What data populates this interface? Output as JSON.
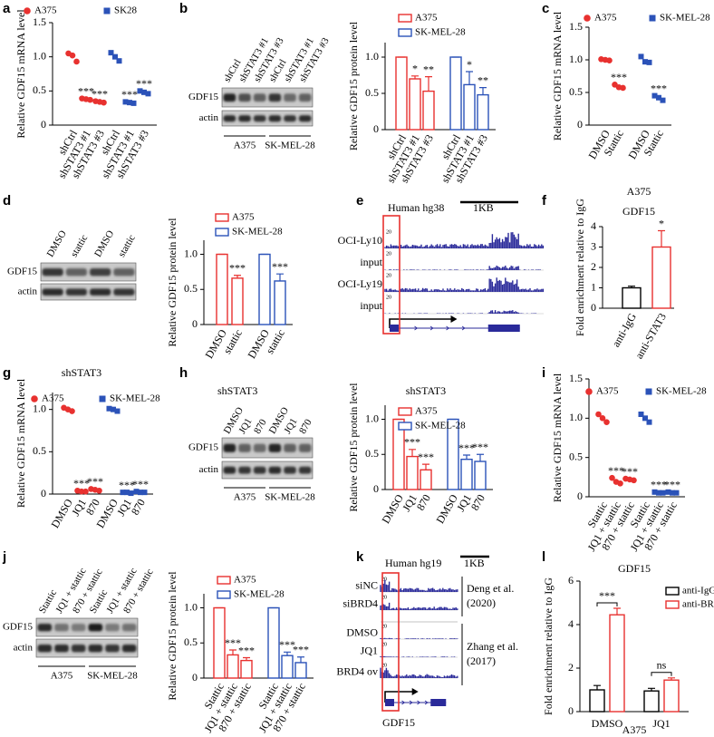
{
  "panel_letters": [
    "a",
    "b",
    "c",
    "d",
    "e",
    "f",
    "g",
    "h",
    "i",
    "j",
    "k",
    "l"
  ],
  "chart_data": [
    {
      "type": "scatter",
      "ylabel": "Relative GDF15 mRNA level",
      "categories": [
        "shCtrl",
        "shSTAT3 #1",
        "shSTAT3 #3",
        "shCtrl",
        "shSTAT3 #1",
        "shSTAT3 #3"
      ],
      "series": [
        {
          "name": "A375",
          "color": "#e8312f",
          "marker": "circle",
          "values": [
            [
              1.05,
              1.02,
              0.93
            ],
            [
              0.39,
              0.38,
              0.37
            ],
            [
              0.35,
              0.34,
              0.33
            ],
            null,
            null,
            null
          ]
        },
        {
          "name": "SK28",
          "color": "#2b52b8",
          "marker": "square",
          "values": [
            null,
            null,
            null,
            [
              1.06,
              1.0,
              0.94
            ],
            [
              0.34,
              0.33,
              0.32
            ],
            [
              0.5,
              0.48,
              0.46
            ]
          ]
        }
      ],
      "annotations": [
        null,
        "***",
        "***",
        null,
        "***",
        "***"
      ],
      "ylim": [
        0,
        1.5
      ],
      "yticks": [
        0,
        0.5,
        {
          "value": 1,
          "label": "1.0"
        },
        1.5
      ]
    },
    {
      "type": "bar",
      "ylabel": "Relative GDF15 protein level",
      "categories": [
        "shCtrl",
        "shSTAT3 #1",
        "shSTAT3 #3",
        "shCtrl",
        "shSTAT3 #1",
        "shSTAT3 #3"
      ],
      "series": [
        {
          "name": "A375",
          "color": "#e8312f",
          "values": [
            1,
            0.7,
            0.53,
            null,
            null,
            null
          ],
          "errors": [
            0,
            0.04,
            0.2,
            null,
            null,
            null
          ]
        },
        {
          "name": "SK-MEL-28",
          "color": "#2b52b8",
          "values": [
            null,
            null,
            null,
            1,
            0.62,
            0.48
          ],
          "errors": [
            null,
            null,
            null,
            0,
            0.18,
            0.1
          ]
        }
      ],
      "annotations": [
        null,
        "*",
        "**",
        null,
        "*",
        "**"
      ],
      "ylim": [
        0,
        1.2
      ],
      "yticks": [
        0,
        0.5,
        {
          "value": 1,
          "label": "1.0"
        }
      ]
    },
    {
      "type": "scatter",
      "ylabel": "Relative GDF15 mRNA level",
      "categories": [
        "DMSO",
        "Stattic",
        "DMSO",
        "Stattic"
      ],
      "series": [
        {
          "name": "A375",
          "color": "#e8312f",
          "marker": "circle",
          "values": [
            [
              1.01,
              1.0,
              0.99
            ],
            [
              0.62,
              0.58,
              0.57
            ],
            null,
            null
          ]
        },
        {
          "name": "SK-MEL-28",
          "color": "#2b52b8",
          "marker": "square",
          "values": [
            null,
            null,
            [
              1.05,
              0.97,
              0.96
            ],
            [
              0.45,
              0.42,
              0.38
            ]
          ]
        }
      ],
      "annotations": [
        null,
        "***",
        null,
        "***"
      ],
      "ylim": [
        0,
        1.5
      ],
      "yticks": [
        0,
        0.5,
        {
          "value": 1,
          "label": "1.0"
        },
        1.5
      ]
    },
    {
      "type": "bar",
      "ylabel": "Relative GDF15 protein level",
      "categories": [
        "DMSO",
        "stattic",
        "DMSO",
        "stattic"
      ],
      "series": [
        {
          "name": "A375",
          "color": "#e8312f",
          "values": [
            1,
            0.66,
            null,
            null
          ],
          "errors": [
            0,
            0.04,
            null,
            null
          ]
        },
        {
          "name": "SK-MEL-28",
          "color": "#2b52b8",
          "values": [
            null,
            null,
            1,
            0.62
          ],
          "errors": [
            null,
            null,
            0,
            0.1
          ]
        }
      ],
      "annotations": [
        null,
        "***",
        null,
        "***"
      ],
      "ylim": [
        0,
        1.2
      ],
      "yticks": [
        0,
        0.5,
        {
          "value": 1,
          "label": "1.0"
        }
      ]
    },
    {
      "type": "bar",
      "title": "A375",
      "subtitle": "GDF15",
      "ylabel": "Fold enrichment relative to IgG",
      "categories": [
        "anti-IgG",
        "anti-STAT3"
      ],
      "series": [
        {
          "color": "#000000",
          "values": [
            1,
            null
          ],
          "errors": [
            0.08,
            null
          ]
        },
        {
          "color": "#e8312f",
          "values": [
            null,
            3
          ],
          "errors": [
            null,
            0.8
          ]
        }
      ],
      "annotations": [
        null,
        "*"
      ],
      "ylim": [
        0,
        4
      ],
      "yticks": [
        0,
        1,
        2,
        3,
        4
      ]
    },
    {
      "type": "scatter",
      "title": "shSTAT3",
      "ylabel": "Relative GDF15 mRNA level",
      "categories": [
        "DMSO",
        "JQ1",
        "870",
        "DMSO",
        "JQ1",
        "870"
      ],
      "series": [
        {
          "name": "A375",
          "color": "#e8312f",
          "marker": "circle",
          "values": [
            [
              1.02,
              1.0,
              0.98
            ],
            [
              0.04,
              0.03,
              0.03
            ],
            [
              0.06,
              0.05,
              0.04
            ],
            null,
            null,
            null
          ]
        },
        {
          "name": "SK-MEL-28",
          "color": "#2b52b8",
          "marker": "square",
          "values": [
            null,
            null,
            null,
            [
              1.01,
              1.0,
              0.98
            ],
            [
              0.02,
              0.02,
              0.01
            ],
            [
              0.03,
              0.02,
              0.02
            ]
          ]
        }
      ],
      "annotations": [
        null,
        "***",
        "***",
        null,
        "***",
        "***"
      ],
      "ylim": [
        0,
        1.2
      ],
      "yticks": [
        0,
        0.5,
        {
          "value": 1,
          "label": "1.0"
        }
      ]
    },
    {
      "type": "bar",
      "title": "shSTAT3",
      "ylabel": "Relative GDF15 protein level",
      "categories": [
        "DMSO",
        "JQ1",
        "870",
        "DMSO",
        "JQ1",
        "870"
      ],
      "series": [
        {
          "name": "A375",
          "color": "#e8312f",
          "values": [
            1,
            0.47,
            0.28,
            null,
            null,
            null
          ],
          "errors": [
            0,
            0.1,
            0.08,
            null,
            null,
            null
          ]
        },
        {
          "name": "SK-MEL-28",
          "color": "#2b52b8",
          "values": [
            null,
            null,
            null,
            1,
            0.43,
            0.4
          ],
          "errors": [
            null,
            null,
            null,
            0,
            0.06,
            0.1
          ]
        }
      ],
      "annotations": [
        null,
        "***",
        "***",
        null,
        "***",
        "***"
      ],
      "ylim": [
        0,
        1.2
      ],
      "yticks": [
        0,
        0.5,
        {
          "value": 1,
          "label": "1.0"
        }
      ]
    },
    {
      "type": "scatter",
      "ylabel": "Relative GDF15 mRNA level",
      "categories": [
        "Stattic",
        "JQ1 + stattic",
        "870 + stattic",
        "Stattic",
        "JQ1 + stattic",
        "870 + stattic"
      ],
      "series": [
        {
          "name": "A375",
          "color": "#e8312f",
          "marker": "circle",
          "values": [
            [
              1.05,
              1.0,
              0.95
            ],
            [
              0.24,
              0.19,
              0.17
            ],
            [
              0.23,
              0.22,
              0.21
            ],
            null,
            null,
            null
          ]
        },
        {
          "name": "SK-MEL-28",
          "color": "#2b52b8",
          "marker": "square",
          "values": [
            null,
            null,
            null,
            [
              1.05,
              1.0,
              0.95
            ],
            [
              0.06,
              0.05,
              0.05
            ],
            [
              0.06,
              0.05,
              0.05
            ]
          ]
        }
      ],
      "annotations": [
        null,
        "***",
        "***",
        null,
        "***",
        "***"
      ],
      "ylim": [
        0,
        1.5
      ],
      "yticks": [
        0,
        0.5,
        {
          "value": 1,
          "label": "1.0"
        },
        1.5
      ]
    },
    {
      "type": "bar",
      "ylabel": "Relative GDF15 protein level",
      "categories": [
        "Stattic",
        "JQ1 + stattic",
        "870 + stattic",
        "Stattic",
        "JQ1 + stattic",
        "870 + stattic"
      ],
      "series": [
        {
          "name": "A375",
          "color": "#e8312f",
          "values": [
            1,
            0.33,
            0.25,
            null,
            null,
            null
          ],
          "errors": [
            0,
            0.07,
            0.04,
            null,
            null,
            null
          ]
        },
        {
          "name": "SK-MEL-28",
          "color": "#2b52b8",
          "values": [
            null,
            null,
            null,
            1,
            0.32,
            0.22
          ],
          "errors": [
            null,
            null,
            null,
            0,
            0.05,
            0.08
          ]
        }
      ],
      "annotations": [
        null,
        "***",
        "***",
        null,
        "***",
        "***"
      ],
      "ylim": [
        0,
        1.2
      ],
      "yticks": [
        0,
        0.5,
        {
          "value": 1,
          "label": "1.0"
        }
      ]
    },
    {
      "type": "bar",
      "title": "GDF15",
      "xlabel": "A375",
      "ylabel": "Fold enrichment relative to IgG",
      "categories": [
        "DMSO",
        "JQ1"
      ],
      "series": [
        {
          "name": "anti-IgG",
          "color": "#000000",
          "values": [
            1,
            0.95
          ],
          "errors": [
            0.2,
            0.12
          ]
        },
        {
          "name": "anti-BRD4",
          "color": "#e8312f",
          "values": [
            4.45,
            1.45
          ],
          "errors": [
            0.3,
            0.1
          ]
        }
      ],
      "annotations": [
        "***",
        "ns"
      ],
      "ylim": [
        0,
        6
      ],
      "yticks": [
        0,
        2,
        4,
        6
      ]
    }
  ],
  "blots": [
    {
      "lanes": [
        "shCtrl",
        "shSTAT3 #1",
        "shSTAT3 #3",
        "shCtrl",
        "shSTAT3 #1",
        "shSTAT3 #3"
      ],
      "rows": [
        "GDF15",
        "actin"
      ],
      "groups": [
        "A375",
        "SK-MEL-28"
      ]
    },
    {
      "lanes": [
        "DMSO",
        "stattic",
        "DMSO",
        "stattic"
      ],
      "rows": [
        "GDF15",
        "actin"
      ]
    },
    {
      "title": "shSTAT3",
      "lanes": [
        "DMSO",
        "JQ1",
        "870",
        "DMSO",
        "JQ1",
        "870"
      ],
      "rows": [
        "GDF15",
        "actin"
      ],
      "groups": [
        "A375",
        "SK-MEL-28"
      ]
    },
    {
      "lanes": [
        "Stattic",
        "JQ1 + stattic",
        "870 + stattic",
        "Stattic",
        "JQ1 + stattic",
        "870 + stattic"
      ],
      "rows": [
        "GDF15",
        "actin"
      ],
      "groups": [
        "A375",
        "SK-MEL-28"
      ]
    }
  ],
  "tracks": [
    {
      "title": "Human hg38",
      "scale": "1KB",
      "track_scale": "20",
      "tracks": [
        "OCI-Ly10",
        "input",
        "OCI-Ly19",
        "input"
      ]
    },
    {
      "title": "Human hg19",
      "scale": "1KB",
      "track_scale": "20",
      "tracks": [
        "siNC",
        "siBRD4",
        "DMSO",
        "JQ1",
        "BRD4 ov"
      ],
      "gene": "GDF15",
      "refs": [
        [
          "Deng et al.",
          "(2020)"
        ],
        [
          "Zhang et al.",
          "(2017)"
        ]
      ]
    }
  ]
}
